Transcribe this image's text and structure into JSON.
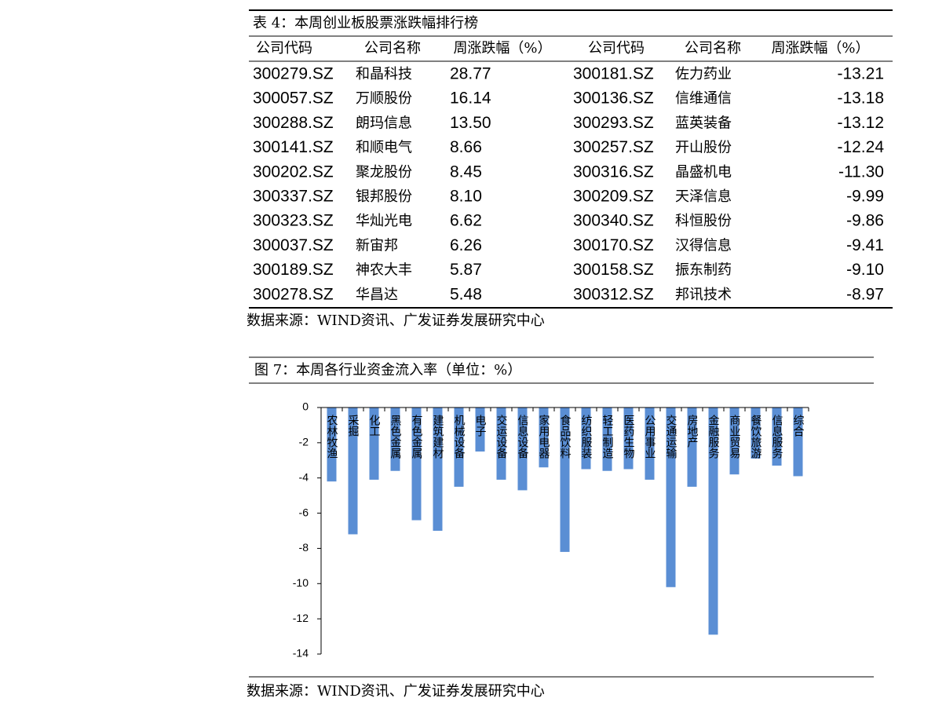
{
  "table": {
    "caption": "表 4：本周创业板股票涨跌幅排行榜",
    "columns": [
      "公司代码",
      "公司名称",
      "周涨跌幅（%）",
      "公司代码",
      "公司名称",
      "周涨跌幅（%）"
    ],
    "rows": [
      [
        "300279.SZ",
        "和晶科技",
        "28.77",
        "300181.SZ",
        "佐力药业",
        "-13.21"
      ],
      [
        "300057.SZ",
        "万顺股份",
        "16.14",
        "300136.SZ",
        "信维通信",
        "-13.18"
      ],
      [
        "300288.SZ",
        "朗玛信息",
        "13.50",
        "300293.SZ",
        "蓝英装备",
        "-13.12"
      ],
      [
        "300141.SZ",
        "和顺电气",
        "8.66",
        "300257.SZ",
        "开山股份",
        "-12.24"
      ],
      [
        "300202.SZ",
        "聚龙股份",
        "8.45",
        "300316.SZ",
        "晶盛机电",
        "-11.30"
      ],
      [
        "300337.SZ",
        "银邦股份",
        "8.10",
        "300209.SZ",
        "天泽信息",
        "-9.99"
      ],
      [
        "300323.SZ",
        "华灿光电",
        "6.62",
        "300340.SZ",
        "科恒股份",
        "-9.86"
      ],
      [
        "300037.SZ",
        "新宙邦",
        "6.26",
        "300170.SZ",
        "汉得信息",
        "-9.41"
      ],
      [
        "300189.SZ",
        "神农大丰",
        "5.87",
        "300158.SZ",
        "振东制药",
        "-9.10"
      ],
      [
        "300278.SZ",
        "华昌达",
        "5.48",
        "300312.SZ",
        "邦讯技术",
        "-8.97"
      ]
    ],
    "source": "数据来源：WIND资讯、广发证券发展研究中心"
  },
  "chart_data": {
    "type": "bar",
    "title": "图 7：本周各行业资金流入率（单位：%）",
    "categories": [
      "农林牧渔",
      "采掘",
      "化工",
      "黑色金属",
      "有色金属",
      "建筑建材",
      "机械设备",
      "电子",
      "交运设备",
      "信息设备",
      "家用电器",
      "食品饮料",
      "纺织服装",
      "轻工制造",
      "医药生物",
      "公用事业",
      "交通运输",
      "房地产",
      "金融服务",
      "商业贸易",
      "餐饮旅游",
      "信息服务",
      "综合"
    ],
    "values": [
      -4.2,
      -7.2,
      -4.1,
      -3.6,
      -6.4,
      -7.0,
      -4.5,
      -2.5,
      -4.1,
      -4.7,
      -3.4,
      -8.2,
      -3.5,
      -3.6,
      -3.5,
      -4.1,
      -10.2,
      -4.5,
      -12.9,
      -3.8,
      -2.9,
      -3.3,
      -3.9
    ],
    "color": "#5a8ed4",
    "ylim": [
      0,
      -14
    ],
    "yticks": [
      0,
      -2,
      -4,
      -6,
      -8,
      -10,
      -12,
      -14
    ],
    "source": "数据来源：WIND资讯、广发证券发展研究中心"
  }
}
